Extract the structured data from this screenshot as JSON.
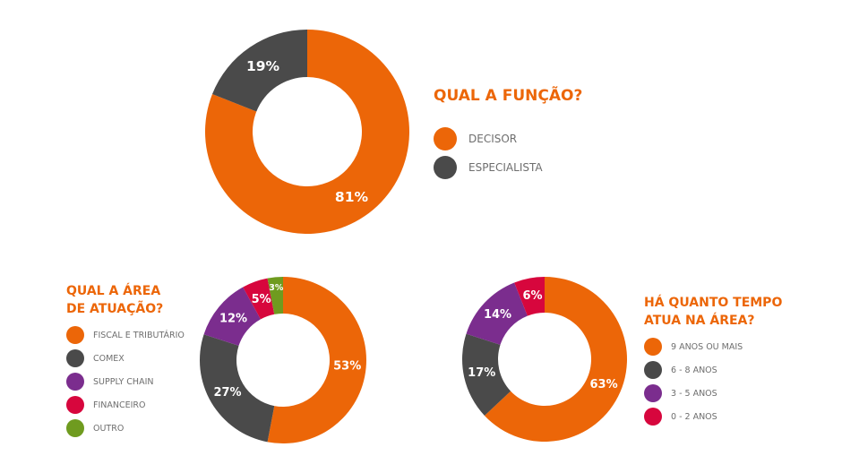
{
  "chart_data": [
    {
      "type": "pie",
      "donut": true,
      "title": "QUAL A FUNÇÃO?",
      "categories": [
        "DECISOR",
        "ESPECIALISTA"
      ],
      "values": [
        81,
        19
      ],
      "labels": [
        "81%",
        "19%"
      ],
      "colors": [
        "#ec6608",
        "#4a4a4a"
      ],
      "legend": "right"
    },
    {
      "type": "pie",
      "donut": true,
      "title_lines": [
        "QUAL A ÁREA",
        "DE ATUAÇÃO?"
      ],
      "categories": [
        "FISCAL E TRIBUTÁRIO",
        "COMEX",
        "SUPPLY CHAIN",
        "FINANCEIRO",
        "OUTRO"
      ],
      "values": [
        53,
        27,
        12,
        5,
        3
      ],
      "labels": [
        "53%",
        "27%",
        "12%",
        "5%",
        "3%"
      ],
      "colors": [
        "#ec6608",
        "#4a4a4a",
        "#7b2d8e",
        "#d7063d",
        "#6f9b1f"
      ],
      "legend": "left"
    },
    {
      "type": "pie",
      "donut": true,
      "title_lines": [
        "HÁ QUANTO TEMPO",
        "ATUA NA ÁREA?"
      ],
      "categories": [
        "9 ANOS OU MAIS",
        "6 - 8 ANOS",
        "3 - 5 ANOS",
        "0 - 2 ANOS"
      ],
      "values": [
        63,
        17,
        14,
        6
      ],
      "labels": [
        "63%",
        "17%",
        "14%",
        "6%"
      ],
      "colors": [
        "#ec6608",
        "#4a4a4a",
        "#7b2d8e",
        "#d7063d"
      ],
      "legend": "right"
    }
  ]
}
